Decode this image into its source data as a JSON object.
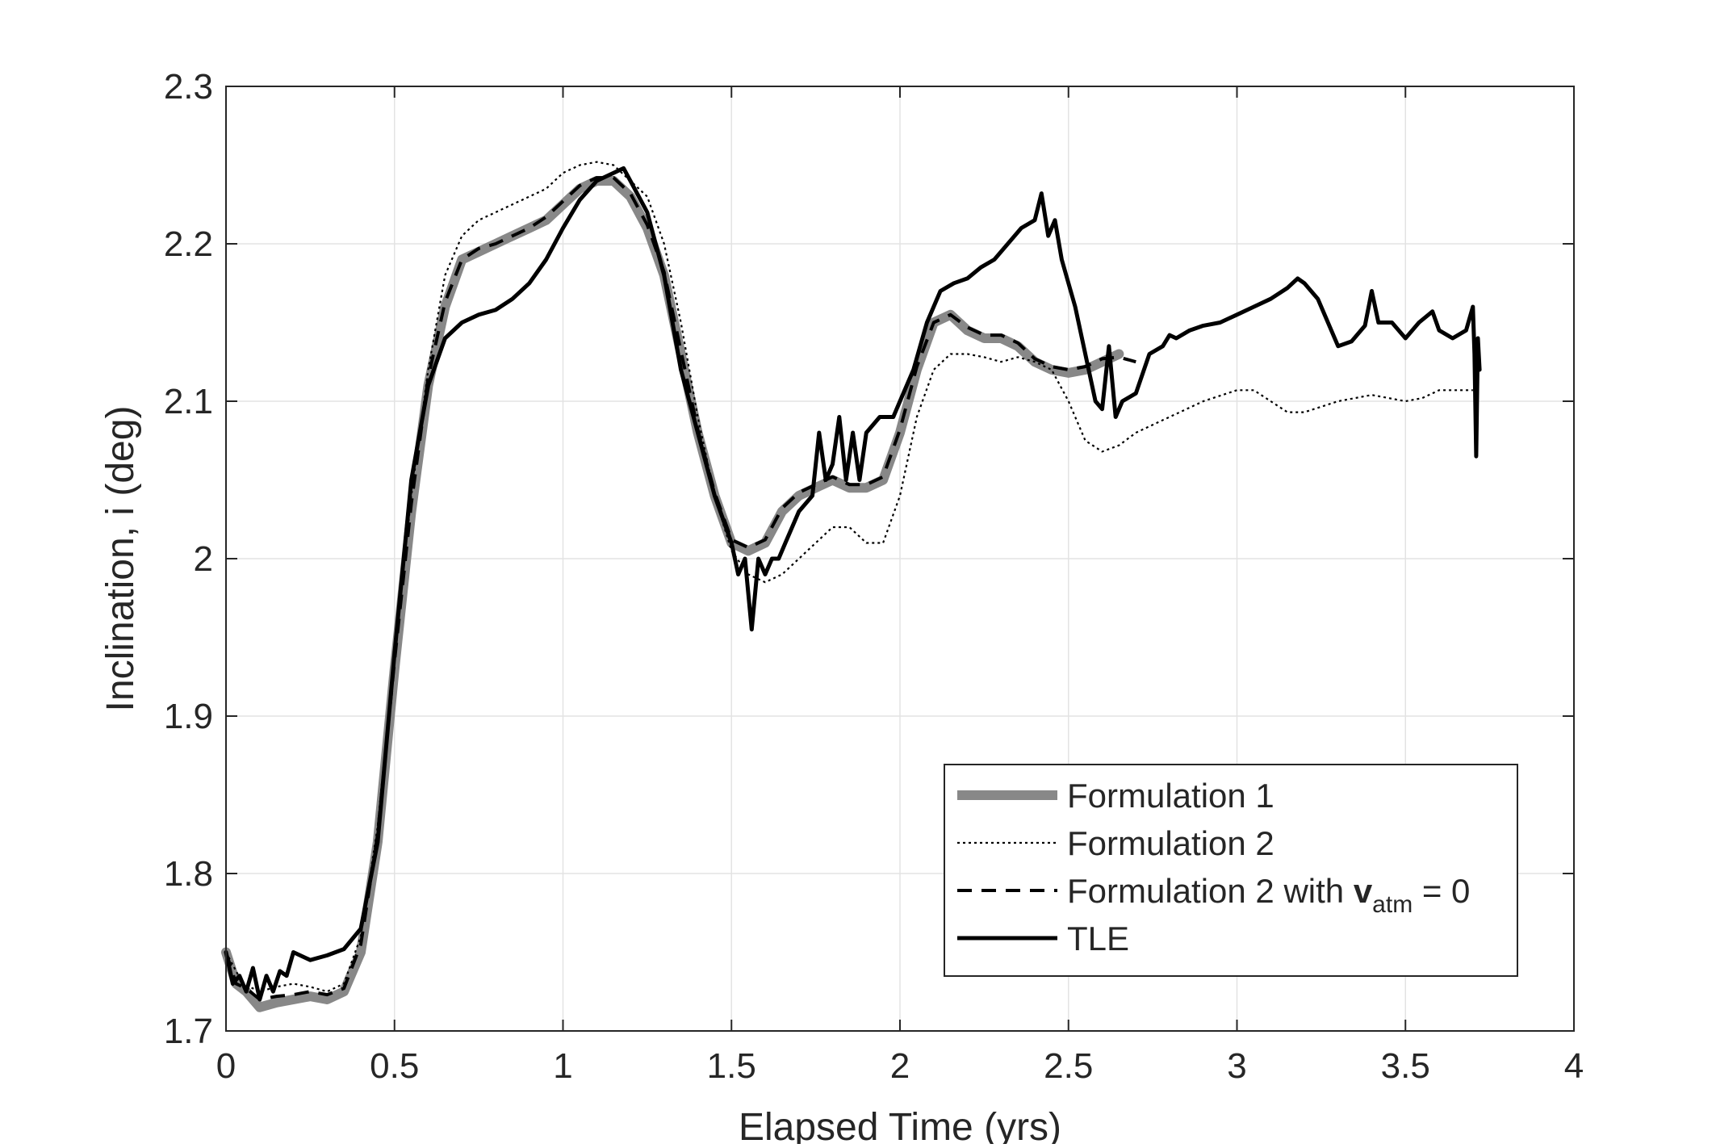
{
  "chart_data": {
    "type": "line",
    "xlabel": "Elapsed Time (yrs)",
    "ylabel": "Inclination, i (deg)",
    "xlim": [
      0,
      4
    ],
    "ylim": [
      1.7,
      2.3
    ],
    "xticks": [
      0,
      0.5,
      1,
      1.5,
      2,
      2.5,
      3,
      3.5,
      4
    ],
    "xtick_labels": [
      "0",
      "0.5",
      "1",
      "1.5",
      "2",
      "2.5",
      "3",
      "3.5",
      "4"
    ],
    "yticks": [
      1.7,
      1.8,
      1.9,
      2.0,
      2.1,
      2.2,
      2.3
    ],
    "ytick_labels": [
      "1.7",
      "1.8",
      "1.9",
      "2",
      "2.1",
      "2.2",
      "2.3"
    ],
    "grid": true,
    "legend": {
      "placement": "bottom-right",
      "entries": [
        {
          "series": 0,
          "label": "Formulation 1"
        },
        {
          "series": 1,
          "label": "Formulation 2"
        },
        {
          "series": 2,
          "label_pre": "Formulation 2 with ",
          "label_bold": "v",
          "label_sub": "atm",
          "label_post": " = 0"
        },
        {
          "series": 3,
          "label": "TLE"
        }
      ]
    },
    "series": [
      {
        "name": "Formulation 1",
        "color": "#888888",
        "style": "thick-solid",
        "x": [
          0,
          0.03,
          0.06,
          0.1,
          0.15,
          0.2,
          0.25,
          0.3,
          0.35,
          0.4,
          0.45,
          0.5,
          0.55,
          0.6,
          0.65,
          0.7,
          0.75,
          0.8,
          0.85,
          0.9,
          0.95,
          1.0,
          1.05,
          1.1,
          1.15,
          1.2,
          1.25,
          1.3,
          1.35,
          1.4,
          1.45,
          1.5,
          1.55,
          1.6,
          1.65,
          1.7,
          1.75,
          1.8,
          1.85,
          1.9,
          1.95,
          2.0,
          2.05,
          2.1,
          2.15,
          2.2,
          2.25,
          2.3,
          2.35,
          2.4,
          2.45,
          2.5,
          2.55,
          2.6,
          2.65
        ],
        "y": [
          1.75,
          1.73,
          1.725,
          1.715,
          1.718,
          1.72,
          1.722,
          1.72,
          1.725,
          1.75,
          1.82,
          1.93,
          2.03,
          2.11,
          2.16,
          2.19,
          2.195,
          2.2,
          2.205,
          2.21,
          2.215,
          2.225,
          2.235,
          2.24,
          2.24,
          2.23,
          2.21,
          2.18,
          2.13,
          2.08,
          2.04,
          2.01,
          2.005,
          2.01,
          2.03,
          2.04,
          2.045,
          2.05,
          2.045,
          2.045,
          2.05,
          2.08,
          2.12,
          2.15,
          2.155,
          2.145,
          2.14,
          2.14,
          2.135,
          2.125,
          2.12,
          2.118,
          2.12,
          2.125,
          2.13
        ]
      },
      {
        "name": "Formulation 2",
        "color": "#000000",
        "style": "dotted",
        "x": [
          0,
          0.05,
          0.1,
          0.15,
          0.2,
          0.25,
          0.3,
          0.35,
          0.4,
          0.45,
          0.5,
          0.55,
          0.6,
          0.65,
          0.7,
          0.75,
          0.8,
          0.85,
          0.9,
          0.95,
          1.0,
          1.05,
          1.1,
          1.15,
          1.2,
          1.25,
          1.3,
          1.35,
          1.4,
          1.45,
          1.5,
          1.55,
          1.6,
          1.65,
          1.7,
          1.75,
          1.8,
          1.85,
          1.9,
          1.95,
          2.0,
          2.05,
          2.1,
          2.15,
          2.2,
          2.25,
          2.3,
          2.35,
          2.4,
          2.45,
          2.5,
          2.55,
          2.6,
          2.65,
          2.7,
          2.75,
          2.8,
          2.9,
          3.0,
          3.05,
          3.1,
          3.15,
          3.2,
          3.3,
          3.4,
          3.5,
          3.55,
          3.6,
          3.7
        ],
        "y": [
          1.75,
          1.73,
          1.725,
          1.728,
          1.73,
          1.728,
          1.725,
          1.73,
          1.76,
          1.83,
          1.94,
          2.04,
          2.12,
          2.18,
          2.205,
          2.215,
          2.22,
          2.225,
          2.23,
          2.235,
          2.245,
          2.25,
          2.252,
          2.25,
          2.24,
          2.23,
          2.2,
          2.15,
          2.09,
          2.04,
          2.005,
          1.99,
          1.985,
          1.99,
          2.0,
          2.01,
          2.02,
          2.02,
          2.01,
          2.01,
          2.04,
          2.09,
          2.12,
          2.13,
          2.13,
          2.128,
          2.125,
          2.128,
          2.125,
          2.12,
          2.1,
          2.075,
          2.068,
          2.072,
          2.08,
          2.085,
          2.09,
          2.1,
          2.107,
          2.107,
          2.1,
          2.093,
          2.093,
          2.1,
          2.104,
          2.1,
          2.102,
          2.107,
          2.107
        ]
      },
      {
        "name": "Formulation 2 with vatm = 0",
        "color": "#000000",
        "style": "dashed",
        "x": [
          0,
          0.03,
          0.06,
          0.1,
          0.15,
          0.2,
          0.25,
          0.3,
          0.35,
          0.4,
          0.45,
          0.5,
          0.55,
          0.6,
          0.65,
          0.7,
          0.75,
          0.8,
          0.85,
          0.9,
          0.95,
          1.0,
          1.05,
          1.1,
          1.15,
          1.2,
          1.25,
          1.3,
          1.35,
          1.4,
          1.45,
          1.5,
          1.55,
          1.6,
          1.65,
          1.7,
          1.75,
          1.8,
          1.85,
          1.9,
          1.95,
          2.0,
          2.05,
          2.1,
          2.15,
          2.2,
          2.25,
          2.3,
          2.35,
          2.4,
          2.45,
          2.5,
          2.55,
          2.6,
          2.65,
          2.7
        ],
        "y": [
          1.75,
          1.73,
          1.727,
          1.72,
          1.722,
          1.723,
          1.725,
          1.723,
          1.727,
          1.755,
          1.825,
          1.935,
          2.035,
          2.115,
          2.163,
          2.19,
          2.197,
          2.2,
          2.205,
          2.21,
          2.217,
          2.227,
          2.237,
          2.242,
          2.242,
          2.232,
          2.212,
          2.182,
          2.132,
          2.082,
          2.042,
          2.012,
          2.007,
          2.012,
          2.032,
          2.042,
          2.047,
          2.052,
          2.047,
          2.047,
          2.052,
          2.082,
          2.122,
          2.15,
          2.155,
          2.147,
          2.142,
          2.142,
          2.137,
          2.127,
          2.122,
          2.12,
          2.122,
          2.127,
          2.128,
          2.125
        ]
      },
      {
        "name": "TLE",
        "color": "#000000",
        "style": "solid",
        "x": [
          0,
          0.02,
          0.04,
          0.06,
          0.08,
          0.1,
          0.12,
          0.14,
          0.16,
          0.18,
          0.2,
          0.25,
          0.3,
          0.35,
          0.4,
          0.45,
          0.5,
          0.55,
          0.6,
          0.65,
          0.7,
          0.75,
          0.8,
          0.85,
          0.9,
          0.95,
          1.0,
          1.05,
          1.1,
          1.15,
          1.18,
          1.2,
          1.25,
          1.3,
          1.35,
          1.4,
          1.45,
          1.5,
          1.52,
          1.54,
          1.56,
          1.58,
          1.6,
          1.62,
          1.64,
          1.66,
          1.7,
          1.74,
          1.76,
          1.78,
          1.8,
          1.82,
          1.84,
          1.86,
          1.88,
          1.9,
          1.94,
          1.98,
          2.0,
          2.04,
          2.08,
          2.12,
          2.16,
          2.2,
          2.24,
          2.28,
          2.32,
          2.36,
          2.4,
          2.42,
          2.44,
          2.46,
          2.48,
          2.52,
          2.56,
          2.58,
          2.6,
          2.62,
          2.64,
          2.66,
          2.7,
          2.74,
          2.78,
          2.8,
          2.82,
          2.86,
          2.9,
          2.95,
          3.0,
          3.05,
          3.1,
          3.15,
          3.18,
          3.2,
          3.24,
          3.28,
          3.3,
          3.34,
          3.38,
          3.4,
          3.42,
          3.46,
          3.5,
          3.54,
          3.58,
          3.6,
          3.64,
          3.68,
          3.7,
          3.705,
          3.71,
          3.715,
          3.72
        ],
        "y": [
          1.75,
          1.73,
          1.735,
          1.725,
          1.74,
          1.72,
          1.735,
          1.725,
          1.738,
          1.735,
          1.75,
          1.745,
          1.748,
          1.752,
          1.765,
          1.82,
          1.94,
          2.05,
          2.11,
          2.14,
          2.15,
          2.155,
          2.158,
          2.165,
          2.175,
          2.19,
          2.21,
          2.228,
          2.24,
          2.245,
          2.248,
          2.24,
          2.22,
          2.18,
          2.12,
          2.08,
          2.04,
          2.01,
          1.99,
          2.0,
          1.955,
          2.0,
          1.99,
          2.0,
          2.0,
          2.01,
          2.03,
          2.04,
          2.08,
          2.05,
          2.06,
          2.09,
          2.05,
          2.08,
          2.05,
          2.08,
          2.09,
          2.09,
          2.1,
          2.12,
          2.15,
          2.17,
          2.175,
          2.178,
          2.185,
          2.19,
          2.2,
          2.21,
          2.215,
          2.232,
          2.205,
          2.215,
          2.19,
          2.16,
          2.12,
          2.1,
          2.095,
          2.135,
          2.09,
          2.1,
          2.105,
          2.13,
          2.135,
          2.142,
          2.14,
          2.145,
          2.148,
          2.15,
          2.155,
          2.16,
          2.165,
          2.172,
          2.178,
          2.175,
          2.165,
          2.145,
          2.135,
          2.138,
          2.148,
          2.17,
          2.15,
          2.15,
          2.14,
          2.15,
          2.157,
          2.145,
          2.14,
          2.145,
          2.16,
          2.13,
          2.065,
          2.14,
          2.12
        ]
      }
    ]
  }
}
